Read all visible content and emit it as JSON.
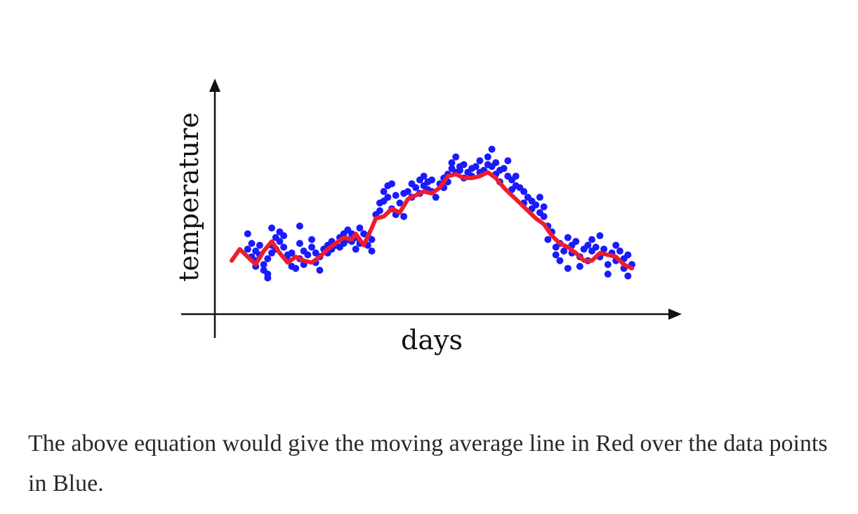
{
  "chart_data": {
    "type": "scatter",
    "xlabel": "days",
    "ylabel": "temperature",
    "x_range": [
      0,
      100
    ],
    "y_range": [
      0,
      100
    ],
    "grid": false,
    "ticks": false,
    "series": [
      {
        "name": "",
        "type": "scatter",
        "color": "#1a1aff",
        "points": [
          [
            4,
            28
          ],
          [
            4,
            36
          ],
          [
            5,
            31
          ],
          [
            5,
            24
          ],
          [
            6,
            22
          ],
          [
            6,
            19
          ],
          [
            6,
            27
          ],
          [
            7,
            30
          ],
          [
            7,
            25
          ],
          [
            8,
            20
          ],
          [
            8,
            17
          ],
          [
            9,
            23
          ],
          [
            9,
            15
          ],
          [
            9,
            13
          ],
          [
            10,
            26
          ],
          [
            10,
            30
          ],
          [
            10,
            39
          ],
          [
            11,
            34
          ],
          [
            11,
            28
          ],
          [
            12,
            37
          ],
          [
            12,
            32
          ],
          [
            13,
            29
          ],
          [
            13,
            35
          ],
          [
            14,
            22
          ],
          [
            14,
            25
          ],
          [
            15,
            19
          ],
          [
            15,
            26
          ],
          [
            16,
            18
          ],
          [
            17,
            23
          ],
          [
            17,
            40
          ],
          [
            17,
            31
          ],
          [
            18,
            27
          ],
          [
            18,
            20
          ],
          [
            19,
            25
          ],
          [
            20,
            29
          ],
          [
            20,
            33
          ],
          [
            21,
            21
          ],
          [
            21,
            26
          ],
          [
            22,
            24
          ],
          [
            22,
            17
          ],
          [
            23,
            28
          ],
          [
            24,
            30
          ],
          [
            24,
            26
          ],
          [
            25,
            28
          ],
          [
            25,
            32
          ],
          [
            26,
            30
          ],
          [
            27,
            29
          ],
          [
            27,
            34
          ],
          [
            28,
            31
          ],
          [
            28,
            36
          ],
          [
            29,
            33
          ],
          [
            29,
            38
          ],
          [
            30,
            32
          ],
          [
            30,
            36
          ],
          [
            31,
            34
          ],
          [
            31,
            28
          ],
          [
            32,
            39
          ],
          [
            32,
            31
          ],
          [
            33,
            36
          ],
          [
            34,
            30
          ],
          [
            34,
            35
          ],
          [
            35,
            33
          ],
          [
            35,
            27
          ],
          [
            36,
            46
          ],
          [
            37,
            48
          ],
          [
            37,
            52
          ],
          [
            38,
            53
          ],
          [
            38,
            58
          ],
          [
            39,
            55
          ],
          [
            39,
            61
          ],
          [
            40,
            62
          ],
          [
            40,
            49
          ],
          [
            41,
            46
          ],
          [
            41,
            56
          ],
          [
            42,
            52
          ],
          [
            43,
            57
          ],
          [
            43,
            45
          ],
          [
            44,
            58
          ],
          [
            45,
            62
          ],
          [
            45,
            55
          ],
          [
            46,
            60
          ],
          [
            47,
            64
          ],
          [
            47,
            57
          ],
          [
            48,
            61
          ],
          [
            48,
            66
          ],
          [
            49,
            59
          ],
          [
            49,
            63
          ],
          [
            50,
            64
          ],
          [
            50,
            58
          ],
          [
            51,
            55
          ],
          [
            52,
            62
          ],
          [
            53,
            60
          ],
          [
            53,
            65
          ],
          [
            54,
            67
          ],
          [
            54,
            63
          ],
          [
            55,
            70
          ],
          [
            55,
            73
          ],
          [
            56,
            68
          ],
          [
            56,
            76
          ],
          [
            57,
            71
          ],
          [
            57,
            69
          ],
          [
            58,
            72
          ],
          [
            58,
            65
          ],
          [
            59,
            68
          ],
          [
            60,
            70
          ],
          [
            60,
            66
          ],
          [
            61,
            71
          ],
          [
            62,
            74
          ],
          [
            62,
            68
          ],
          [
            63,
            69
          ],
          [
            64,
            72
          ],
          [
            64,
            76
          ],
          [
            65,
            80
          ],
          [
            65,
            71
          ],
          [
            66,
            67
          ],
          [
            66,
            73
          ],
          [
            67,
            69
          ],
          [
            67,
            63
          ],
          [
            68,
            70
          ],
          [
            69,
            66
          ],
          [
            69,
            74
          ],
          [
            70,
            64
          ],
          [
            70,
            59
          ],
          [
            71,
            61
          ],
          [
            71,
            66
          ],
          [
            72,
            60
          ],
          [
            73,
            58
          ],
          [
            73,
            52
          ],
          [
            74,
            55
          ],
          [
            75,
            49
          ],
          [
            75,
            53
          ],
          [
            76,
            51
          ],
          [
            77,
            47
          ],
          [
            77,
            55
          ],
          [
            78,
            45
          ],
          [
            78,
            50
          ],
          [
            79,
            40
          ],
          [
            79,
            33
          ],
          [
            80,
            37
          ],
          [
            81,
            25
          ],
          [
            81,
            29
          ],
          [
            82,
            22
          ],
          [
            82,
            31
          ],
          [
            83,
            27
          ],
          [
            84,
            34
          ],
          [
            84,
            18
          ],
          [
            85,
            26
          ],
          [
            85,
            30
          ],
          [
            86,
            32
          ],
          [
            87,
            24
          ],
          [
            87,
            19
          ],
          [
            88,
            28
          ],
          [
            89,
            30
          ],
          [
            89,
            22
          ],
          [
            90,
            27
          ],
          [
            90,
            33
          ],
          [
            91,
            29
          ],
          [
            92,
            35
          ],
          [
            92,
            24
          ],
          [
            93,
            28
          ],
          [
            94,
            15
          ],
          [
            94,
            20
          ],
          [
            95,
            26
          ],
          [
            96,
            22
          ],
          [
            96,
            30
          ],
          [
            97,
            27
          ],
          [
            98,
            18
          ],
          [
            98,
            23
          ],
          [
            99,
            25
          ],
          [
            99,
            14
          ],
          [
            100,
            20
          ]
        ]
      },
      {
        "name": "",
        "type": "line",
        "color": "#ee1c2c",
        "points": [
          [
            0,
            22
          ],
          [
            2,
            28
          ],
          [
            4,
            24
          ],
          [
            6,
            20
          ],
          [
            8,
            27
          ],
          [
            10,
            32
          ],
          [
            12,
            26
          ],
          [
            14,
            21
          ],
          [
            16,
            24
          ],
          [
            18,
            22
          ],
          [
            20,
            21
          ],
          [
            22,
            24
          ],
          [
            24,
            28
          ],
          [
            26,
            31
          ],
          [
            28,
            34
          ],
          [
            30,
            33
          ],
          [
            31,
            36
          ],
          [
            33,
            30
          ],
          [
            35,
            39
          ],
          [
            36,
            44
          ],
          [
            38,
            45
          ],
          [
            40,
            49
          ],
          [
            42,
            47
          ],
          [
            44,
            54
          ],
          [
            46,
            56
          ],
          [
            48,
            58
          ],
          [
            50,
            57
          ],
          [
            52,
            60
          ],
          [
            54,
            66
          ],
          [
            56,
            67
          ],
          [
            58,
            65
          ],
          [
            60,
            65
          ],
          [
            62,
            66
          ],
          [
            64,
            68
          ],
          [
            66,
            65
          ],
          [
            68,
            60
          ],
          [
            70,
            56
          ],
          [
            72,
            52
          ],
          [
            74,
            48
          ],
          [
            76,
            44
          ],
          [
            78,
            41
          ],
          [
            80,
            35
          ],
          [
            82,
            31
          ],
          [
            84,
            29
          ],
          [
            86,
            26
          ],
          [
            88,
            22
          ],
          [
            90,
            22
          ],
          [
            92,
            26
          ],
          [
            94,
            25
          ],
          [
            96,
            24
          ],
          [
            98,
            20
          ],
          [
            100,
            18
          ]
        ]
      }
    ]
  },
  "caption": "The above equation would give the moving average line in Red over the data points in Blue."
}
